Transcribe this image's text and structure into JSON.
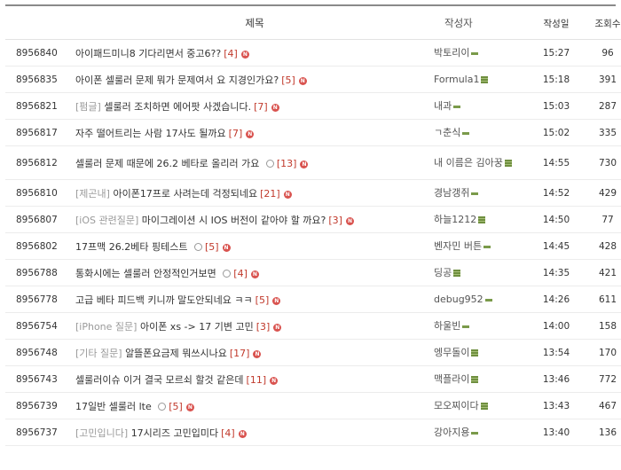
{
  "header": {
    "title": "제목",
    "author": "작성자",
    "date": "작성일",
    "views": "조회수"
  },
  "new_badge": "N",
  "rows": [
    {
      "id": "8956840",
      "category": "",
      "title": "아이패드미니8 기다리면서 중고6??",
      "comments": "[4]",
      "image": false,
      "author": "박토리이",
      "level": "bar",
      "date": "15:27",
      "views": "96"
    },
    {
      "id": "8956835",
      "category": "",
      "title": "아이폰 셀룰러 문제 뭐가 문제여서 요 지경인가요?",
      "comments": "[5]",
      "image": false,
      "author": "Formula1",
      "level": "box",
      "date": "15:18",
      "views": "391"
    },
    {
      "id": "8956821",
      "category": "[펌글]",
      "title": "셀룰러 조치하면 에어팟 사겠습니다.",
      "comments": "[7]",
      "image": false,
      "author": "내과",
      "level": "bar",
      "date": "15:03",
      "views": "287"
    },
    {
      "id": "8956817",
      "category": "",
      "title": "자주 떨어트리는 사람 17사도 될까요",
      "comments": "[7]",
      "image": false,
      "author": "ㄱ춘식",
      "level": "bar",
      "date": "15:02",
      "views": "335"
    },
    {
      "id": "8956812",
      "category": "",
      "title": "셀룰러 문제 때문에 26.2 베타로 올리러 가요",
      "comments": "[13]",
      "image": true,
      "author": "내 이름은 김아꿍",
      "level": "box",
      "date": "14:55",
      "views": "730"
    },
    {
      "id": "8956810",
      "category": "[제곤내]",
      "title": "아이폰17프로 사려는데 걱정되네요",
      "comments": "[21]",
      "image": false,
      "author": "경남갱쥐",
      "level": "bar",
      "date": "14:52",
      "views": "429"
    },
    {
      "id": "8956807",
      "category": "[iOS 관련질문]",
      "title": "마이그레이션 시 IOS 버전이 같아야 할 까요?",
      "comments": "[3]",
      "image": false,
      "author": "하늘1212",
      "level": "box",
      "date": "14:50",
      "views": "77"
    },
    {
      "id": "8956802",
      "category": "",
      "title": "17프맥 26.2베타 핑테스트",
      "comments": "[5]",
      "image": true,
      "author": "벤자민 버튼",
      "level": "bar",
      "date": "14:45",
      "views": "428"
    },
    {
      "id": "8956788",
      "category": "",
      "title": "통화시에는 셀룰러 안정적인거보면",
      "comments": "[4]",
      "image": true,
      "author": "딩공",
      "level": "box",
      "date": "14:35",
      "views": "421"
    },
    {
      "id": "8956778",
      "category": "",
      "title": "고급 베타 피드백 키니까 말도안되네요 ㅋㅋ",
      "comments": "[5]",
      "image": false,
      "author": "debug952",
      "level": "bar",
      "date": "14:26",
      "views": "611"
    },
    {
      "id": "8956754",
      "category": "[iPhone 질문]",
      "title": "아이폰 xs -> 17 기변 고민",
      "comments": "[3]",
      "image": false,
      "author": "하울빈",
      "level": "bar",
      "date": "14:00",
      "views": "158"
    },
    {
      "id": "8956748",
      "category": "[기타 질문]",
      "title": "알뜰폰요금제 뭐쓰시나요",
      "comments": "[17]",
      "image": false,
      "author": "엥무돌이",
      "level": "box",
      "date": "13:54",
      "views": "170"
    },
    {
      "id": "8956743",
      "category": "",
      "title": "셀룰러이슈 이거 결국 모르쇠 할것 같은데",
      "comments": "[11]",
      "image": false,
      "author": "맥플라이",
      "level": "box",
      "date": "13:46",
      "views": "772"
    },
    {
      "id": "8956739",
      "category": "",
      "title": "17일반 셀룰러 lte",
      "comments": "[5]",
      "image": true,
      "author": "모오찌이다",
      "level": "box",
      "date": "13:43",
      "views": "467"
    },
    {
      "id": "8956737",
      "category": "[고민입니다]",
      "title": "17시리즈 고민입미다",
      "comments": "[4]",
      "image": false,
      "author": "강아지용",
      "level": "bar",
      "date": "13:40",
      "views": "136"
    }
  ]
}
